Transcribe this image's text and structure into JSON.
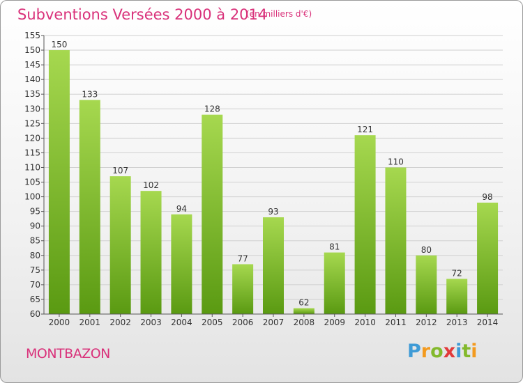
{
  "title": "Subventions Versées 2000 à 2014",
  "subtitle": "(en milliers d'€)",
  "commune": "MONTBAZON",
  "logo": {
    "letters": [
      "P",
      "r",
      "o",
      "x",
      "i",
      "t",
      "i"
    ],
    "colors": [
      "#3f9bd6",
      "#f39a1e",
      "#83b92c",
      "#e23a3a",
      "#3f9bd6",
      "#83b92c",
      "#f39a1e"
    ]
  },
  "colors": {
    "accent": "#d9317a",
    "bar_top": "#a6d84f",
    "bar_bottom": "#5a9a12",
    "grid": "#d0d0d0"
  },
  "chart_data": {
    "type": "bar",
    "categories": [
      "2000",
      "2001",
      "2002",
      "2003",
      "2004",
      "2005",
      "2006",
      "2007",
      "2008",
      "2009",
      "2010",
      "2011",
      "2012",
      "2013",
      "2014"
    ],
    "values": [
      150,
      133,
      107,
      102,
      94,
      128,
      77,
      93,
      62,
      81,
      121,
      110,
      80,
      72,
      98
    ],
    "ylim": [
      60,
      155
    ],
    "ytick_step": 5,
    "grid": true,
    "data_labels": true,
    "xlabel": "",
    "ylabel": ""
  }
}
